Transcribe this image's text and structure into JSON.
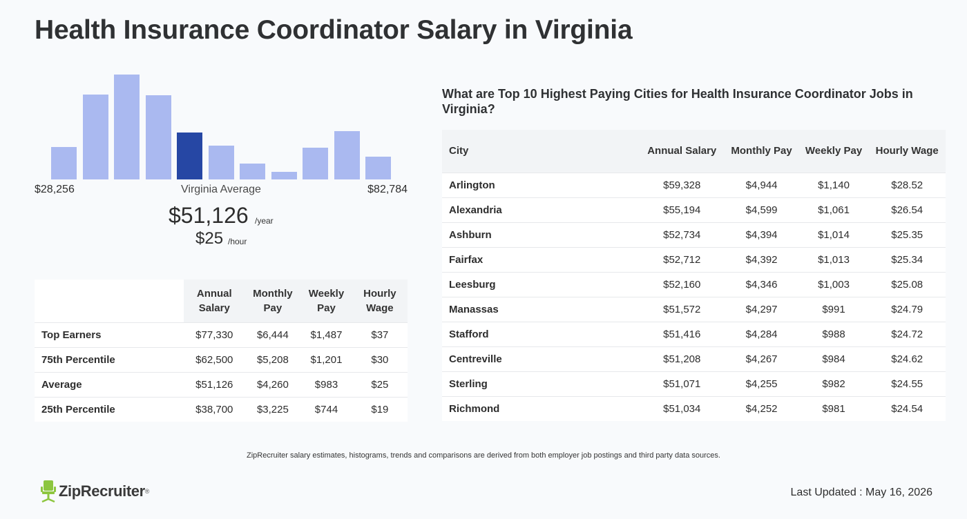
{
  "page": {
    "title": "Health Insurance Coordinator Salary in Virginia"
  },
  "histogram": {
    "min_label": "$28,256",
    "max_label": "$82,784",
    "mid_label": "Virginia Average",
    "active_index": 4,
    "bar_color": "#aab9f0",
    "active_color": "#2647a4",
    "relative_heights": [
      0.31,
      0.81,
      1.0,
      0.8,
      0.45,
      0.32,
      0.15,
      0.07,
      0.3,
      0.46,
      0.22
    ]
  },
  "average": {
    "annual": "$51,126",
    "annual_unit": "/year",
    "hourly": "$25",
    "hourly_unit": "/hour"
  },
  "percentile_table": {
    "headers": [
      "",
      "Annual Salary",
      "Monthly Pay",
      "Weekly Pay",
      "Hourly Wage"
    ],
    "rows": [
      [
        "Top Earners",
        "$77,330",
        "$6,444",
        "$1,487",
        "$37"
      ],
      [
        "75th Percentile",
        "$62,500",
        "$5,208",
        "$1,201",
        "$30"
      ],
      [
        "Average",
        "$51,126",
        "$4,260",
        "$983",
        "$25"
      ],
      [
        "25th Percentile",
        "$38,700",
        "$3,225",
        "$744",
        "$19"
      ]
    ]
  },
  "cities": {
    "heading": "What are Top 10 Highest Paying Cities for Health Insurance Coordinator Jobs in Virginia?",
    "headers": [
      "City",
      "Annual Salary",
      "Monthly Pay",
      "Weekly Pay",
      "Hourly Wage"
    ],
    "rows": [
      [
        "Arlington",
        "$59,328",
        "$4,944",
        "$1,140",
        "$28.52"
      ],
      [
        "Alexandria",
        "$55,194",
        "$4,599",
        "$1,061",
        "$26.54"
      ],
      [
        "Ashburn",
        "$52,734",
        "$4,394",
        "$1,014",
        "$25.35"
      ],
      [
        "Fairfax",
        "$52,712",
        "$4,392",
        "$1,013",
        "$25.34"
      ],
      [
        "Leesburg",
        "$52,160",
        "$4,346",
        "$1,003",
        "$25.08"
      ],
      [
        "Manassas",
        "$51,572",
        "$4,297",
        "$991",
        "$24.79"
      ],
      [
        "Stafford",
        "$51,416",
        "$4,284",
        "$988",
        "$24.72"
      ],
      [
        "Centreville",
        "$51,208",
        "$4,267",
        "$984",
        "$24.62"
      ],
      [
        "Sterling",
        "$51,071",
        "$4,255",
        "$982",
        "$24.55"
      ],
      [
        "Richmond",
        "$51,034",
        "$4,252",
        "$981",
        "$24.54"
      ]
    ]
  },
  "footer": {
    "disclaimer": "ZipRecruiter salary estimates, histograms, trends and comparisons are derived from both employer job postings and third party data sources.",
    "logo_text": "ZipRecruiter",
    "logo_mark": "®",
    "logo_color": "#8dc63f",
    "last_updated": "Last Updated : May 16, 2026"
  }
}
